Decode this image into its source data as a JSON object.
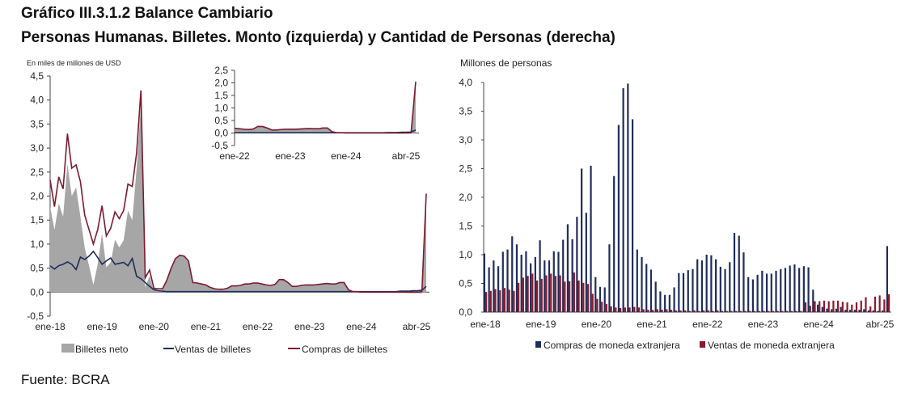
{
  "title": "Gráfico III.3.1.2 Balance Cambiario",
  "subtitle": "Personas Humanas. Billetes. Monto (izquierda) y Cantidad de Personas (derecha)",
  "source": "Fuente: BCRA",
  "colors": {
    "neto": "#a6a6a6",
    "ventas": "#1f2d5a",
    "compras": "#7b1a30",
    "compras_bar": "#1f2d5a",
    "ventas_bar": "#8b1a2e"
  },
  "chart_data": [
    {
      "type": "area+line",
      "ylabel": "En miles de millones de USD",
      "ylim": [
        -0.5,
        4.5
      ],
      "yticks": [
        "-0,5",
        "0,0",
        "0,5",
        "1,0",
        "1,5",
        "2,0",
        "2,5",
        "3,0",
        "3,5",
        "4,0",
        "4,5"
      ],
      "xticks": [
        {
          "label": "ene-18",
          "index": 0
        },
        {
          "label": "ene-19",
          "index": 12
        },
        {
          "label": "ene-20",
          "index": 24
        },
        {
          "label": "ene-21",
          "index": 36
        },
        {
          "label": "ene-22",
          "index": 48
        },
        {
          "label": "ene-23",
          "index": 60
        },
        {
          "label": "ene-24",
          "index": 72
        },
        {
          "label": "abr-25",
          "index": 87
        }
      ],
      "x_start": "ene-18",
      "x_end": "abr-25",
      "frequency": "monthly",
      "grid": false,
      "legend": "bottom",
      "series": [
        {
          "name": "Billetes neto",
          "type": "area",
          "values": [
            1.78,
            1.3,
            1.85,
            1.57,
            2.67,
            2.0,
            2.18,
            1.57,
            0.92,
            0.55,
            0.15,
            0.58,
            1.22,
            0.52,
            0.62,
            1.09,
            0.93,
            1.08,
            1.7,
            1.5,
            2.57,
            3.92,
            0.1,
            0.34,
            0.03,
            0.04,
            0.05,
            0.24,
            0.49,
            0.69,
            0.76,
            0.74,
            0.64,
            0.19,
            0.18,
            0.16,
            0.14,
            0.09,
            0.06,
            0.05,
            0.05,
            0.07,
            0.12,
            0.12,
            0.13,
            0.16,
            0.16,
            0.18,
            0.18,
            0.16,
            0.14,
            0.13,
            0.15,
            0.25,
            0.25,
            0.19,
            0.11,
            0.11,
            0.13,
            0.14,
            0.14,
            0.14,
            0.15,
            0.16,
            0.17,
            0.16,
            0.16,
            0.19,
            0.19,
            0.04,
            0,
            0,
            -0.01,
            -0.01,
            -0.01,
            -0.01,
            -0.01,
            -0.01,
            -0.01,
            -0.01,
            -0.01,
            -0.01,
            -0.01,
            -0.02,
            -0.02,
            -0.02,
            -0.03,
            1.93
          ]
        },
        {
          "name": "Ventas de billetes",
          "type": "line",
          "values": [
            0.55,
            0.48,
            0.55,
            0.58,
            0.63,
            0.58,
            0.47,
            0.73,
            0.68,
            0.75,
            0.85,
            0.72,
            0.58,
            0.65,
            0.71,
            0.58,
            0.6,
            0.62,
            0.55,
            0.7,
            0.33,
            0.28,
            0.2,
            0.12,
            0.05,
            0.03,
            0.02,
            0.01,
            0.01,
            0.01,
            0.01,
            0.01,
            0.01,
            0.01,
            0.01,
            0.01,
            0.01,
            0.01,
            0.01,
            0.01,
            0.01,
            0.01,
            0.01,
            0.01,
            0.01,
            0.01,
            0.01,
            0.01,
            0.01,
            0.01,
            0.01,
            0.01,
            0.01,
            0.01,
            0.01,
            0.01,
            0.01,
            0.01,
            0.01,
            0.01,
            0.01,
            0.01,
            0.01,
            0.01,
            0.01,
            0.01,
            0.01,
            0.01,
            0.01,
            0.01,
            0.01,
            0.01,
            0.01,
            0.01,
            0.01,
            0.01,
            0.01,
            0.01,
            0.01,
            0.01,
            0.01,
            0.02,
            0.02,
            0.02,
            0.03,
            0.03,
            0.04,
            0.12
          ]
        },
        {
          "name": "Compras de billetes",
          "type": "line",
          "values": [
            2.33,
            1.78,
            2.4,
            2.15,
            3.3,
            2.58,
            2.65,
            2.3,
            1.6,
            1.3,
            1.0,
            1.3,
            1.8,
            1.17,
            1.33,
            1.67,
            1.53,
            1.7,
            2.25,
            2.2,
            2.9,
            4.2,
            0.3,
            0.46,
            0.08,
            0.07,
            0.07,
            0.25,
            0.5,
            0.7,
            0.77,
            0.75,
            0.65,
            0.2,
            0.19,
            0.17,
            0.15,
            0.1,
            0.07,
            0.06,
            0.06,
            0.08,
            0.13,
            0.13,
            0.14,
            0.17,
            0.17,
            0.19,
            0.19,
            0.17,
            0.15,
            0.14,
            0.16,
            0.26,
            0.26,
            0.2,
            0.12,
            0.12,
            0.14,
            0.15,
            0.15,
            0.15,
            0.16,
            0.17,
            0.18,
            0.17,
            0.17,
            0.2,
            0.2,
            0.05,
            0.01,
            0.01,
            0,
            0,
            0,
            0,
            0,
            0,
            0,
            0,
            0,
            0,
            0,
            0,
            0,
            0,
            0.01,
            2.05
          ]
        }
      ],
      "inset": {
        "ylim": [
          -0.5,
          2.5
        ],
        "yticks": [
          "-0,5",
          "0,0",
          "0,5",
          "1,0",
          "1,5",
          "2,0",
          "2,5"
        ],
        "x_start": "ene-22",
        "x_end": "abr-25",
        "xticks": [
          {
            "label": "ene-22",
            "index": 48
          },
          {
            "label": "ene-23",
            "index": 60
          },
          {
            "label": "ene-24",
            "index": 72
          },
          {
            "label": "abr-25",
            "index": 87
          }
        ]
      }
    },
    {
      "type": "bar",
      "ylabel": "Millones de personas",
      "ylim": [
        0,
        4.0
      ],
      "yticks": [
        "0,0",
        "0,5",
        "1,0",
        "1,5",
        "2,0",
        "2,5",
        "3,0",
        "3,5",
        "4,0"
      ],
      "xticks": [
        {
          "label": "ene-18",
          "index": 0
        },
        {
          "label": "ene-19",
          "index": 12
        },
        {
          "label": "ene-20",
          "index": 24
        },
        {
          "label": "ene-21",
          "index": 36
        },
        {
          "label": "ene-22",
          "index": 48
        },
        {
          "label": "ene-23",
          "index": 60
        },
        {
          "label": "ene-24",
          "index": 72
        },
        {
          "label": "abr-25",
          "index": 87
        }
      ],
      "x_start": "ene-18",
      "x_end": "abr-25",
      "frequency": "monthly",
      "grid": false,
      "legend": "bottom",
      "series": [
        {
          "name": "Compras de moneda extranjera",
          "values": [
            1.02,
            0.78,
            0.9,
            0.8,
            1.05,
            1.09,
            1.32,
            1.18,
            1.0,
            1.06,
            0.85,
            0.96,
            1.25,
            0.9,
            0.9,
            1.06,
            1.05,
            1.26,
            1.53,
            1.27,
            1.66,
            2.5,
            1.73,
            2.55,
            0.61,
            0.44,
            0.43,
            1.18,
            2.37,
            3.26,
            3.9,
            3.98,
            3.36,
            1.09,
            0.96,
            0.84,
            0.74,
            0.53,
            0.36,
            0.3,
            0.3,
            0.43,
            0.68,
            0.68,
            0.73,
            0.75,
            0.92,
            0.9,
            1.0,
            0.99,
            0.92,
            0.79,
            0.75,
            0.87,
            1.38,
            1.33,
            1.04,
            0.61,
            0.57,
            0.65,
            0.72,
            0.67,
            0.67,
            0.72,
            0.75,
            0.77,
            0.81,
            0.83,
            0.77,
            0.8,
            0.78,
            0.39,
            0.13,
            0.09,
            0.06,
            0.05,
            0.06,
            0.09,
            0.04,
            0.04,
            0.04,
            0.04,
            0.05,
            0.03,
            0.03,
            0.02,
            0.03,
            1.15
          ]
        },
        {
          "name": "Ventas de moneda extranjera",
          "values": [
            0.35,
            0.37,
            0.4,
            0.38,
            0.42,
            0.39,
            0.37,
            0.51,
            0.6,
            0.63,
            0.67,
            0.55,
            0.58,
            0.64,
            0.67,
            0.63,
            0.64,
            0.53,
            0.54,
            0.69,
            0.55,
            0.51,
            0.49,
            0.32,
            0.23,
            0.18,
            0.14,
            0.1,
            0.08,
            0.07,
            0.08,
            0.08,
            0.09,
            0.08,
            0.05,
            0.04,
            0.04,
            0.05,
            0.04,
            0.05,
            0.04,
            0.03,
            0.03,
            0.03,
            0.02,
            0.03,
            0.02,
            0.03,
            0.03,
            0.02,
            0.03,
            0.02,
            0.02,
            0.02,
            0.02,
            0.02,
            0.02,
            0.02,
            0.02,
            0.02,
            0.02,
            0.02,
            0.02,
            0.02,
            0.02,
            0.02,
            0.02,
            0.02,
            0.02,
            0.17,
            0.11,
            0.19,
            0.19,
            0.2,
            0.19,
            0.2,
            0.2,
            0.18,
            0.17,
            0.13,
            0.17,
            0.2,
            0.26,
            0.1,
            0.27,
            0.29,
            0.22,
            0.31
          ]
        }
      ]
    }
  ]
}
